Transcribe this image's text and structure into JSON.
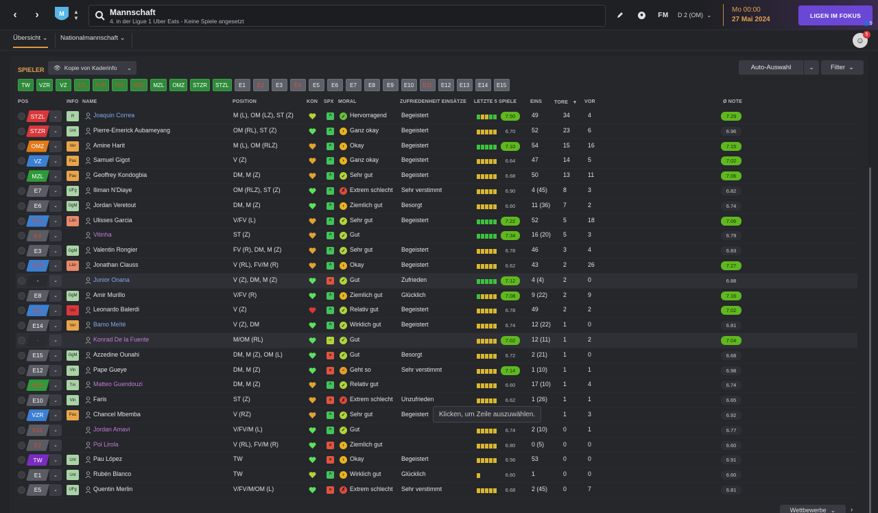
{
  "header": {
    "title": "Mannschaft",
    "subtitle": "4. in der Ligue 1 Uber Eats - Keine Spiele angesetzt",
    "fm_label": "FM",
    "division_select": "D 2 (OM)",
    "time": "Mo 00:00",
    "date": "27 Mai 2024",
    "focus_button": "LIGEN IM FOKUS",
    "user_count": "5",
    "avatar_badge": "5"
  },
  "tabs": [
    {
      "label": "Übersicht"
    },
    {
      "label": "Nationalmannschaft"
    }
  ],
  "toolbar": {
    "section_label": "SPIELER",
    "view_select": "Kopie von Kaderinfo",
    "auto_button": "Auto-Auswahl",
    "filter_button": "Filter"
  },
  "position_chips": [
    {
      "label": "TW",
      "style": "green"
    },
    {
      "label": "VZR",
      "style": "green"
    },
    {
      "label": "VZ",
      "style": "green"
    },
    {
      "label": "VZL",
      "style": "green-red"
    },
    {
      "label": "FVR",
      "style": "green-red"
    },
    {
      "label": "FVL",
      "style": "green-red"
    },
    {
      "label": "MZR",
      "style": "green-red"
    },
    {
      "label": "MZL",
      "style": "green"
    },
    {
      "label": "OMZ",
      "style": "green"
    },
    {
      "label": "STZR",
      "style": "green"
    },
    {
      "label": "STZL",
      "style": "green"
    },
    {
      "label": "E1",
      "style": "grey"
    },
    {
      "label": "E2",
      "style": "grey-red"
    },
    {
      "label": "E3",
      "style": "grey"
    },
    {
      "label": "E4",
      "style": "grey-red"
    },
    {
      "label": "E5",
      "style": "grey"
    },
    {
      "label": "E6",
      "style": "grey"
    },
    {
      "label": "E7",
      "style": "grey"
    },
    {
      "label": "E8",
      "style": "grey"
    },
    {
      "label": "E9",
      "style": "grey"
    },
    {
      "label": "E10",
      "style": "grey"
    },
    {
      "label": "E11",
      "style": "grey-red"
    },
    {
      "label": "E12",
      "style": "grey"
    },
    {
      "label": "E13",
      "style": "grey"
    },
    {
      "label": "E14",
      "style": "grey"
    },
    {
      "label": "E15",
      "style": "grey"
    }
  ],
  "columns": {
    "pos": "POS",
    "info": "INFO",
    "name": "NAME",
    "position": "POSITION",
    "kon": "KON",
    "spx": "SPX",
    "moral": "MORAL",
    "zufriedenheit": "ZUFRIEDENHEIT EINSÄTZE",
    "letzte": "LETZTE 5 SPIELE",
    "eins": "EINS",
    "tore": "TORE",
    "vor": "VOR",
    "note": "Ø NOTE"
  },
  "colors": {
    "stzl": "#d8383b",
    "omz": "#e07b18",
    "vz": "#3c7fd1",
    "mzl": "#2f9a3b",
    "reserve": "#5a5b63",
    "fvl": "#3c7fd1",
    "tw": "#7a2cc0",
    "accent": "#e3a050",
    "focus": "#6b47d6"
  },
  "players": [
    {
      "pos": "STZL",
      "pcolor": "#d8383b",
      "pcol_text": "#fff",
      "info": "R",
      "icolor": "#a9d4a6",
      "name": "Joaquin Correa",
      "ncls": "link",
      "position": "M (L), OM (LZ), ST (Z)",
      "kon": "#b4d13a",
      "spx": "^",
      "spxc": "#43c35a",
      "mor": "✓",
      "morc": "#67c23a",
      "moral": "Hervorragend",
      "zuf": "Begeistert",
      "bars": "GYYGG",
      "rating": "7.50",
      "rhi": true,
      "eins": "49",
      "tore": "34",
      "vor": "4",
      "note": "7.29",
      "nhi": true
    },
    {
      "pos": "STZR",
      "pcolor": "#d8383b",
      "pcol_text": "#fff",
      "info": "Unt",
      "icolor": "#a9d4a6",
      "name": "Pierre-Emerick Aubameyang",
      "ncls": "",
      "position": "OM (RL), ST (Z)",
      "kon": "#5ce05c",
      "spx": "^",
      "spxc": "#43c35a",
      "mor": "›",
      "morc": "#e8b21f",
      "moral": "Ganz okay",
      "zuf": "Begeistert",
      "bars": "YYYYY",
      "rating": "6.70",
      "rhi": false,
      "eins": "52",
      "tore": "23",
      "vor": "6",
      "note": "6.96",
      "nhi": false
    },
    {
      "pos": "OMZ",
      "pcolor": "#e07b18",
      "pcol_text": "#fff",
      "info": "Ver",
      "icolor": "#e9a54b",
      "name": "Amine Harit",
      "ncls": "",
      "position": "M (L), OM (RLZ)",
      "kon": "#e0a233",
      "spx": "^",
      "spxc": "#43c35a",
      "mor": "›",
      "morc": "#e8b21f",
      "moral": "Okay",
      "zuf": "Begeistert",
      "bars": "GGGGG",
      "rating": "7.10",
      "rhi": true,
      "eins": "54",
      "tore": "15",
      "vor": "16",
      "note": "7.15",
      "nhi": true
    },
    {
      "pos": "VZ",
      "pcolor": "#3c7fd1",
      "pcol_text": "#fff",
      "info": "Pau",
      "icolor": "#e9a54b",
      "name": "Samuel Gigot",
      "ncls": "",
      "position": "V (Z)",
      "kon": "#e0a233",
      "spx": "^",
      "spxc": "#43c35a",
      "mor": "›",
      "morc": "#e8b21f",
      "moral": "Ganz okay",
      "zuf": "Begeistert",
      "bars": "YYYYY",
      "rating": "6.64",
      "rhi": false,
      "eins": "47",
      "tore": "14",
      "vor": "5",
      "note": "7.02",
      "nhi": true
    },
    {
      "pos": "MZL",
      "pcolor": "#2f9a3b",
      "pcol_text": "#fff",
      "info": "Pau",
      "icolor": "#e9a54b",
      "name": "Geoffrey Kondogbia",
      "ncls": "",
      "position": "DM, M (Z)",
      "kon": "#e0a233",
      "spx": "^",
      "spxc": "#43c35a",
      "mor": "✓",
      "morc": "#b0d43a",
      "moral": "Sehr gut",
      "zuf": "Begeistert",
      "bars": "YYYYY",
      "rating": "6.68",
      "rhi": false,
      "eins": "50",
      "tore": "13",
      "vor": "11",
      "note": "7.06",
      "nhi": true
    },
    {
      "pos": "E7",
      "pcolor": "#5a5b63",
      "pcol_text": "#fff",
      "info": "UFg",
      "icolor": "#a9d4a6",
      "name": "Iliman N'Diaye",
      "ncls": "",
      "position": "OM (RLZ), ST (Z)",
      "kon": "#5ce05c",
      "spx": "^",
      "spxc": "#43c35a",
      "mor": "✗",
      "morc": "#e04a3a",
      "moral": "Extrem schlecht",
      "zuf": "Sehr verstimmt",
      "bars": "YYYYY",
      "rating": "6.90",
      "rhi": false,
      "eins": "4 (45)",
      "tore": "8",
      "vor": "3",
      "note": "6.82",
      "nhi": false
    },
    {
      "pos": "E6",
      "pcolor": "#5a5b63",
      "pcol_text": "#fff",
      "info": "GgM",
      "icolor": "#a9d4a6",
      "name": "Jordan Veretout",
      "ncls": "",
      "position": "DM, M (Z)",
      "kon": "#5ce05c",
      "spx": "^",
      "spxc": "#43c35a",
      "mor": "›",
      "morc": "#e8b21f",
      "moral": "Ziemlich gut",
      "zuf": "Besorgt",
      "bars": "YYYYY",
      "rating": "6.60",
      "rhi": false,
      "eins": "11 (36)",
      "tore": "7",
      "vor": "2",
      "note": "6.74",
      "nhi": false
    },
    {
      "pos": "FVL",
      "pcolor": "#3c7fd1",
      "pcol_text": "#d84a3a",
      "info": "Län",
      "icolor": "#e98a6b",
      "name": "Ulisses Garcia",
      "ncls": "",
      "position": "V/FV (L)",
      "kon": "#e0a233",
      "spx": "^",
      "spxc": "#43c35a",
      "mor": "✓",
      "morc": "#b0d43a",
      "moral": "Sehr gut",
      "zuf": "Begeistert",
      "bars": "GGGGG",
      "rating": "7.22",
      "rhi": true,
      "eins": "52",
      "tore": "5",
      "vor": "18",
      "note": "7.06",
      "nhi": true
    },
    {
      "pos": "E4",
      "pcolor": "#5a5b63",
      "pcol_text": "#d84a3a",
      "info": "",
      "icolor": "transparent",
      "name": "Vitinha",
      "ncls": "purple",
      "position": "ST (Z)",
      "kon": "#e0a233",
      "spx": "^",
      "spxc": "#43c35a",
      "mor": "✓",
      "morc": "#b0d43a",
      "moral": "Gut",
      "zuf": "",
      "bars": "GGGGG",
      "rating": "7.34",
      "rhi": true,
      "eins": "16 (20)",
      "tore": "5",
      "vor": "3",
      "note": "6.79",
      "nhi": false
    },
    {
      "pos": "E3",
      "pcolor": "#5a5b63",
      "pcol_text": "#fff",
      "info": "GgM",
      "icolor": "#a9d4a6",
      "name": "Valentin Rongier",
      "ncls": "",
      "position": "FV (R), DM, M (Z)",
      "kon": "#e0a233",
      "spx": "^",
      "spxc": "#43c35a",
      "mor": "✓",
      "morc": "#b0d43a",
      "moral": "Sehr gut",
      "zuf": "Begeistert",
      "bars": "YYYYY",
      "rating": "6.78",
      "rhi": false,
      "eins": "46",
      "tore": "3",
      "vor": "4",
      "note": "6.83",
      "nhi": false
    },
    {
      "pos": "FVR",
      "pcolor": "#3c7fd1",
      "pcol_text": "#d84a3a",
      "info": "Län",
      "icolor": "#e98a6b",
      "name": "Jonathan Clauss",
      "ncls": "",
      "position": "V (RL), FV/M (R)",
      "kon": "#e0a233",
      "spx": "^",
      "spxc": "#43c35a",
      "mor": "›",
      "morc": "#e8b21f",
      "moral": "Okay",
      "zuf": "Begeistert",
      "bars": "YYYYY",
      "rating": "6.62",
      "rhi": false,
      "eins": "43",
      "tore": "2",
      "vor": "26",
      "note": "7.27",
      "nhi": true
    },
    {
      "pos": "-",
      "pcolor": "#2a2b30",
      "pcol_text": "#fff",
      "info": "",
      "icolor": "transparent",
      "name": "Junior Onana",
      "ncls": "link",
      "position": "V (Z), DM, M (Z)",
      "kon": "#5ce05c",
      "spx": "×",
      "spxc": "#e2543f",
      "mor": "✓",
      "morc": "#b0d43a",
      "moral": "Gut",
      "zuf": "Zufrieden",
      "bars": "GGGGG",
      "rating": "7.12",
      "rhi": true,
      "eins": "4 (4)",
      "tore": "2",
      "vor": "0",
      "note": "6.88",
      "nhi": false,
      "sel": true
    },
    {
      "pos": "E8",
      "pcolor": "#5a5b63",
      "pcol_text": "#fff",
      "info": "GgM",
      "icolor": "#a9d4a6",
      "name": "Amir Murillo",
      "ncls": "",
      "position": "V/FV (R)",
      "kon": "#5ce05c",
      "spx": "^",
      "spxc": "#43c35a",
      "mor": "›",
      "morc": "#e8b21f",
      "moral": "Ziemlich gut",
      "zuf": "Glücklich",
      "bars": "GYYYY",
      "rating": "7.08",
      "rhi": true,
      "eins": "9 (22)",
      "tore": "2",
      "vor": "9",
      "note": "7.16",
      "nhi": true
    },
    {
      "pos": "VZL",
      "pcolor": "#3c7fd1",
      "pcol_text": "#d84a3a",
      "info": "Ver",
      "icolor": "#d8383b",
      "name": "Leonardo Balerdi",
      "ncls": "",
      "position": "V (Z)",
      "kon": "#d8383b",
      "spx": "^",
      "spxc": "#43c35a",
      "mor": "✓",
      "morc": "#b0d43a",
      "moral": "Relativ gut",
      "zuf": "Begeistert",
      "bars": "YYYYY",
      "rating": "6.78",
      "rhi": false,
      "eins": "49",
      "tore": "2",
      "vor": "2",
      "note": "7.02",
      "nhi": true
    },
    {
      "pos": "E14",
      "pcolor": "#5a5b63",
      "pcol_text": "#fff",
      "info": "Ver",
      "icolor": "#e9a54b",
      "name": "Bamo Meïté",
      "ncls": "link",
      "position": "V (Z), DM",
      "kon": "#5ce05c",
      "spx": "^",
      "spxc": "#43c35a",
      "mor": "✓",
      "morc": "#b0d43a",
      "moral": "Wirklich gut",
      "zuf": "Begeistert",
      "bars": "YYYYY",
      "rating": "6.74",
      "rhi": false,
      "eins": "12 (22)",
      "tore": "1",
      "vor": "0",
      "note": "6.81",
      "nhi": false
    },
    {
      "pos": "-",
      "pcolor": "#2a2b30",
      "pcol_text": "#d84a3a",
      "info": "",
      "icolor": "transparent",
      "name": "Konrad De la Fuente",
      "ncls": "purple",
      "position": "M/OM (RL)",
      "kon": "#5ce05c",
      "spx": "–",
      "spxc": "#b0d43a",
      "mor": "✓",
      "morc": "#b0d43a",
      "moral": "Gut",
      "zuf": "",
      "bars": "YYYYY",
      "rating": "7.02",
      "rhi": true,
      "eins": "12 (11)",
      "tore": "1",
      "vor": "2",
      "note": "7.04",
      "nhi": true,
      "sel": true
    },
    {
      "pos": "E15",
      "pcolor": "#5a5b63",
      "pcol_text": "#fff",
      "info": "GgM",
      "icolor": "#a9d4a6",
      "name": "Azzedine Ounahi",
      "ncls": "",
      "position": "DM, M (Z), OM (L)",
      "kon": "#5ce05c",
      "spx": "×",
      "spxc": "#e2543f",
      "mor": "✓",
      "morc": "#b0d43a",
      "moral": "Gut",
      "zuf": "Besorgt",
      "bars": "YYYYY",
      "rating": "6.72",
      "rhi": false,
      "eins": "2 (21)",
      "tore": "1",
      "vor": "0",
      "note": "6.68",
      "nhi": false
    },
    {
      "pos": "E12",
      "pcolor": "#5a5b63",
      "pcol_text": "#fff",
      "info": "Vin",
      "icolor": "#a9d4a6",
      "name": "Pape Gueye",
      "ncls": "",
      "position": "DM, M (Z)",
      "kon": "#5ce05c",
      "spx": "×",
      "spxc": "#e2543f",
      "mor": "–",
      "morc": "#e89a2a",
      "moral": "Geht so",
      "zuf": "Sehr verstimmt",
      "bars": "YYYYY",
      "rating": "7.14",
      "rhi": true,
      "eins": "1 (10)",
      "tore": "1",
      "vor": "1",
      "note": "6.98",
      "nhi": false
    },
    {
      "pos": "MZR",
      "pcolor": "#2f9a3b",
      "pcol_text": "#d84a3a",
      "info": "Tm",
      "icolor": "#a9d4a6",
      "name": "Matteo Guendouzi",
      "ncls": "purple",
      "position": "DM, M (Z)",
      "kon": "#e0a233",
      "spx": "^",
      "spxc": "#43c35a",
      "mor": "✓",
      "morc": "#b0d43a",
      "moral": "Relativ gut",
      "zuf": "",
      "bars": "YYYYY",
      "rating": "6.60",
      "rhi": false,
      "eins": "17 (10)",
      "tore": "1",
      "vor": "4",
      "note": "6.74",
      "nhi": false
    },
    {
      "pos": "E10",
      "pcolor": "#5a5b63",
      "pcol_text": "#fff",
      "info": "Vin",
      "icolor": "#a9d4a6",
      "name": "Faris",
      "ncls": "",
      "position": "ST (Z)",
      "kon": "#e0a233",
      "spx": "×",
      "spxc": "#e2543f",
      "mor": "✗",
      "morc": "#e04a3a",
      "moral": "Extrem schlecht",
      "zuf": "Unzufrieden",
      "bars": "YYYYY",
      "rating": "6.62",
      "rhi": false,
      "eins": "1 (26)",
      "tore": "1",
      "vor": "1",
      "note": "6.65",
      "nhi": false
    },
    {
      "pos": "VZR",
      "pcolor": "#3c7fd1",
      "pcol_text": "#fff",
      "info": "Pau",
      "icolor": "#e9a54b",
      "name": "Chancel Mbemba",
      "ncls": "",
      "position": "V (RZ)",
      "kon": "#e0a233",
      "spx": "^",
      "spxc": "#43c35a",
      "mor": "✓",
      "morc": "#b0d43a",
      "moral": "Sehr gut",
      "zuf": "Begeistert",
      "bars": "YYYYY",
      "rating": "6.70",
      "rhi": false,
      "eins": "51",
      "tore": "1",
      "vor": "3",
      "note": "6.92",
      "nhi": false
    },
    {
      "pos": "E11",
      "pcolor": "#5a5b63",
      "pcol_text": "#d84a3a",
      "info": "",
      "icolor": "transparent",
      "name": "Jordan Amavi",
      "ncls": "purple",
      "position": "V/FV/M (L)",
      "kon": "#5ce05c",
      "spx": "^",
      "spxc": "#43c35a",
      "mor": "✓",
      "morc": "#b0d43a",
      "moral": "Gut",
      "zuf": "",
      "bars": "YYYYY",
      "rating": "6.74",
      "rhi": false,
      "eins": "2 (10)",
      "tore": "0",
      "vor": "1",
      "note": "6.77",
      "nhi": false
    },
    {
      "pos": "E2",
      "pcolor": "#5a5b63",
      "pcol_text": "#d84a3a",
      "info": "",
      "icolor": "transparent",
      "name": "Pol Lirola",
      "ncls": "purple",
      "position": "V (RL), FV/M (R)",
      "kon": "#5ce05c",
      "spx": "×",
      "spxc": "#e2543f",
      "mor": "›",
      "morc": "#e8b21f",
      "moral": "Ziemlich gut",
      "zuf": "",
      "bars": "YYYYY",
      "rating": "6.80",
      "rhi": false,
      "eins": "0 (5)",
      "tore": "0",
      "vor": "0",
      "note": "6.60",
      "nhi": false
    },
    {
      "pos": "TW",
      "pcolor": "#7a2cc0",
      "pcol_text": "#fff",
      "info": "Unt",
      "icolor": "#a9d4a6",
      "name": "Pau López",
      "ncls": "",
      "position": "TW",
      "kon": "#5ce05c",
      "spx": "×",
      "spxc": "#e2543f",
      "mor": "›",
      "morc": "#e8b21f",
      "moral": "Okay",
      "zuf": "Begeistert",
      "bars": "YYYYY",
      "rating": "6.56",
      "rhi": false,
      "eins": "53",
      "tore": "0",
      "vor": "0",
      "note": "6.91",
      "nhi": false
    },
    {
      "pos": "E1",
      "pcolor": "#5a5b63",
      "pcol_text": "#fff",
      "info": "Unt",
      "icolor": "#a9d4a6",
      "name": "Rubén Blanco",
      "ncls": "",
      "position": "TW",
      "kon": "#b4d13a",
      "spx": "^",
      "spxc": "#43c35a",
      "mor": "›",
      "morc": "#e8b21f",
      "moral": "Wirklich gut",
      "zuf": "Glücklich",
      "bars": "Y",
      "rating": "6.60",
      "rhi": false,
      "eins": "1",
      "tore": "0",
      "vor": "0",
      "note": "6.60",
      "nhi": false
    },
    {
      "pos": "E5",
      "pcolor": "#5a5b63",
      "pcol_text": "#fff",
      "info": "UFg",
      "icolor": "#a9d4a6",
      "name": "Quentin Merlin",
      "ncls": "",
      "position": "V/FV/M/OM (L)",
      "kon": "#5ce05c",
      "spx": "×",
      "spxc": "#e2543f",
      "mor": "✗",
      "morc": "#e04a3a",
      "moral": "Extrem schlecht",
      "zuf": "Sehr verstimmt",
      "bars": "YYYYY",
      "rating": "6.68",
      "rhi": false,
      "eins": "2 (45)",
      "tore": "0",
      "vor": "7",
      "note": "6.81",
      "nhi": false
    }
  ],
  "tooltip": "Klicken, um Zeile auszuwählen.",
  "footer": {
    "wettbewerbe": "Wettbewerbe"
  }
}
